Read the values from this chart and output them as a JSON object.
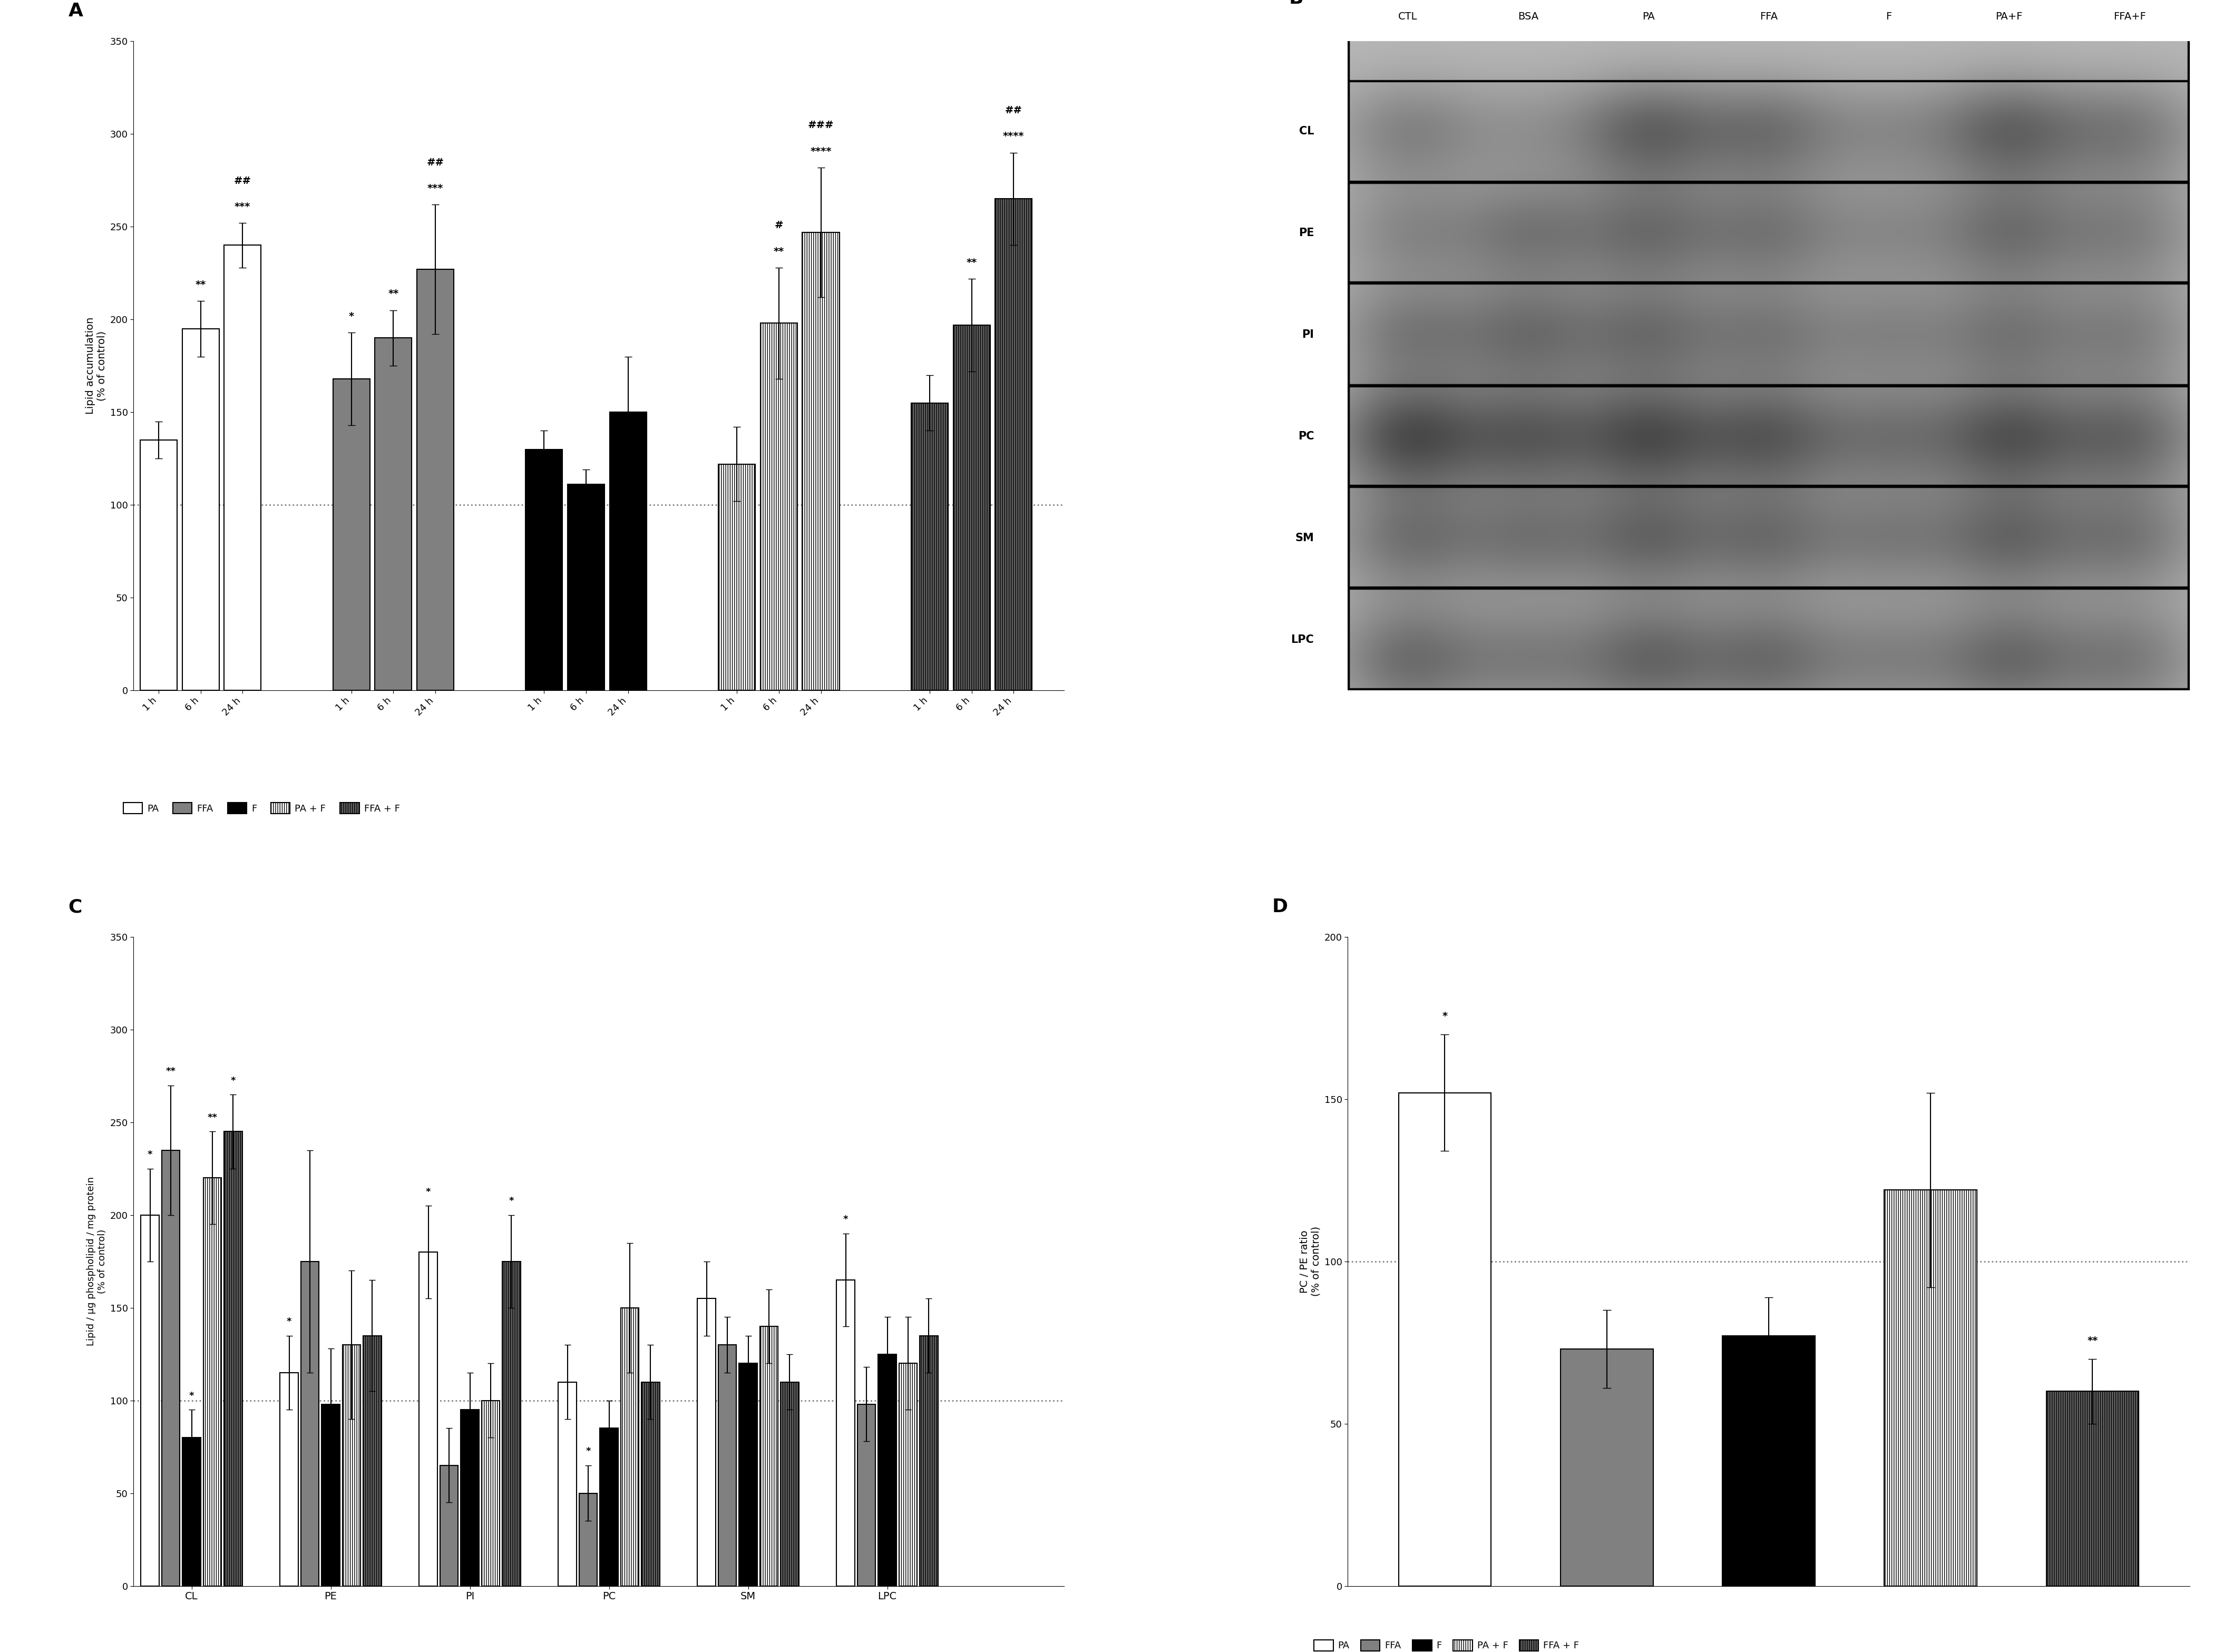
{
  "panel_A": {
    "title": "A",
    "ylabel": "Lipid accumulation\n(% of control)",
    "ylim": [
      0,
      350
    ],
    "yticks": [
      0,
      50,
      100,
      150,
      200,
      250,
      300,
      350
    ],
    "dashed_line": 100,
    "timepoints": [
      "1 h",
      "6 h",
      "24 h"
    ],
    "values": {
      "PA": [
        135,
        195,
        240
      ],
      "FFA": [
        168,
        190,
        227
      ],
      "F": [
        130,
        111,
        150
      ],
      "PA+F": [
        122,
        198,
        247
      ],
      "FFA+F": [
        155,
        197,
        265
      ]
    },
    "errors": {
      "PA": [
        10,
        15,
        12
      ],
      "FFA": [
        25,
        15,
        35
      ],
      "F": [
        10,
        8,
        30
      ],
      "PA+F": [
        20,
        30,
        35
      ],
      "FFA+F": [
        15,
        25,
        25
      ]
    },
    "star_annotations": {
      "PA": [
        "",
        "**",
        "***"
      ],
      "FFA": [
        "*",
        "**",
        "***"
      ],
      "F": [
        "",
        "",
        ""
      ],
      "PA+F": [
        "",
        "**",
        "****"
      ],
      "FFA+F": [
        "",
        "**",
        "****"
      ]
    },
    "hash_annotations": {
      "PA": [
        "",
        "",
        "##"
      ],
      "FFA": [
        "",
        "",
        "##"
      ],
      "F": [
        "",
        "",
        ""
      ],
      "PA+F": [
        "",
        "#",
        "###"
      ],
      "FFA+F": [
        "",
        "",
        "##"
      ]
    }
  },
  "panel_B": {
    "title": "B",
    "row_labels": [
      "CL",
      "PE",
      "PI",
      "PC",
      "SM",
      "LPC"
    ],
    "col_labels": [
      "CTL",
      "BSA",
      "PA",
      "FFA",
      "F",
      "PA+F",
      "FFA+F"
    ],
    "bg_color": "#b8b8b8",
    "band_color_dark": "#1a1a1a",
    "band_color_mid": "#555555",
    "band_color_light": "#888888",
    "row_sep_color": "#000000",
    "outer_border_color": "#000000"
  },
  "panel_C": {
    "title": "C",
    "ylabel": "Lipid / μg phospholipid / mg protein\n(% of control)",
    "ylim": [
      0,
      350
    ],
    "yticks": [
      0,
      50,
      100,
      150,
      200,
      250,
      300,
      350
    ],
    "dashed_line": 100,
    "lipid_classes": [
      "CL",
      "PE",
      "PI",
      "PC",
      "SM",
      "LPC"
    ],
    "values": {
      "CL": {
        "PA": 200,
        "FFA": 235,
        "F": 80,
        "PA+F": 220,
        "FFA+F": 245
      },
      "PE": {
        "PA": 115,
        "FFA": 175,
        "F": 98,
        "PA+F": 130,
        "FFA+F": 135
      },
      "PI": {
        "PA": 180,
        "FFA": 65,
        "F": 95,
        "PA+F": 100,
        "FFA+F": 175
      },
      "PC": {
        "PA": 110,
        "FFA": 50,
        "F": 85,
        "PA+F": 150,
        "FFA+F": 110
      },
      "SM": {
        "PA": 155,
        "FFA": 130,
        "F": 120,
        "PA+F": 140,
        "FFA+F": 110
      },
      "LPC": {
        "PA": 165,
        "FFA": 98,
        "F": 125,
        "PA+F": 120,
        "FFA+F": 135
      }
    },
    "errors": {
      "CL": {
        "PA": 25,
        "FFA": 35,
        "F": 15,
        "PA+F": 25,
        "FFA+F": 20
      },
      "PE": {
        "PA": 20,
        "FFA": 60,
        "F": 30,
        "PA+F": 40,
        "FFA+F": 30
      },
      "PI": {
        "PA": 25,
        "FFA": 20,
        "F": 20,
        "PA+F": 20,
        "FFA+F": 25
      },
      "PC": {
        "PA": 20,
        "FFA": 15,
        "F": 15,
        "PA+F": 35,
        "FFA+F": 20
      },
      "SM": {
        "PA": 20,
        "FFA": 15,
        "F": 15,
        "PA+F": 20,
        "FFA+F": 15
      },
      "LPC": {
        "PA": 25,
        "FFA": 20,
        "F": 20,
        "PA+F": 25,
        "FFA+F": 20
      }
    },
    "star_annotations": {
      "CL": {
        "PA": "*",
        "FFA": "**",
        "F": "*",
        "PA+F": "**",
        "FFA+F": "*"
      },
      "PE": {
        "PA": "*",
        "FFA": "",
        "F": "",
        "PA+F": "",
        "FFA+F": ""
      },
      "PI": {
        "PA": "*",
        "FFA": "",
        "F": "",
        "PA+F": "",
        "FFA+F": "*"
      },
      "PC": {
        "PA": "",
        "FFA": "*",
        "F": "",
        "PA+F": "",
        "FFA+F": ""
      },
      "SM": {
        "PA": "",
        "FFA": "",
        "F": "",
        "PA+F": "",
        "FFA+F": ""
      },
      "LPC": {
        "PA": "*",
        "FFA": "",
        "F": "",
        "PA+F": "",
        "FFA+F": ""
      }
    }
  },
  "panel_D": {
    "title": "D",
    "ylabel": "PC / PE ratio\n(% of control)",
    "ylim": [
      0,
      200
    ],
    "yticks": [
      0,
      50,
      100,
      150,
      200
    ],
    "dashed_line": 100,
    "values": [
      152,
      73,
      77,
      122,
      60
    ],
    "errors": [
      18,
      12,
      12,
      30,
      10
    ],
    "star_annotations": [
      "*",
      "",
      "",
      "",
      "**"
    ]
  },
  "colors": {
    "PA": "#ffffff",
    "FFA": "#808080",
    "F": "#000000",
    "PA+F": "#ffffff",
    "FFA+F": "#606060"
  },
  "hatches": {
    "PA": "",
    "FFA": "",
    "F": "",
    "PA+F": "||||",
    "FFA+F": "||||"
  },
  "edgecolor": "#000000",
  "background": "#ffffff"
}
